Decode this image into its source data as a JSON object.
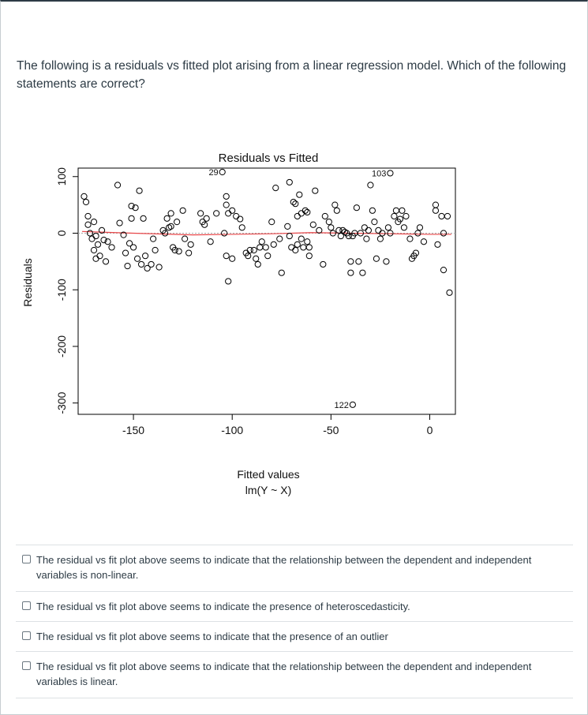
{
  "question": {
    "text": "The following is a residuals vs fitted plot arising from a linear regression model. Which of the following statements are correct?"
  },
  "chart_data": {
    "type": "scatter",
    "title": "Residuals vs Fitted",
    "xlabel": "Fitted values",
    "xlabel_sub": "lm(Y ~ X)",
    "ylabel": "Residuals",
    "xlim": [
      -178,
      13
    ],
    "ylim": [
      -320,
      115
    ],
    "x_ticks": [
      -150,
      -100,
      -50,
      0
    ],
    "x_tick_labels": [
      "-150",
      "-100",
      "-50",
      "0"
    ],
    "y_ticks": [
      100,
      0,
      -100,
      -200,
      -300
    ],
    "y_tick_labels": [
      "100",
      "0",
      "-100",
      "-200",
      "-300"
    ],
    "reference_line_y": 0,
    "smooth_line_color": "#e8474a",
    "reference_line_color": "#aaaaaa",
    "annotations": [
      {
        "label": "29",
        "x": -105,
        "y": 108
      },
      {
        "label": "103",
        "x": -20,
        "y": 106
      },
      {
        "label": "122",
        "x": -39,
        "y": -303
      }
    ],
    "points": [
      {
        "x": -175,
        "y": 65
      },
      {
        "x": -174,
        "y": 55
      },
      {
        "x": -173,
        "y": 30
      },
      {
        "x": -173,
        "y": 15
      },
      {
        "x": -172,
        "y": 0
      },
      {
        "x": -171,
        "y": -10
      },
      {
        "x": -170,
        "y": 20
      },
      {
        "x": -170,
        "y": -30
      },
      {
        "x": -169,
        "y": -5
      },
      {
        "x": -169,
        "y": -45
      },
      {
        "x": -168,
        "y": -20
      },
      {
        "x": -167,
        "y": -40
      },
      {
        "x": -166,
        "y": 5
      },
      {
        "x": -165,
        "y": -12
      },
      {
        "x": -164,
        "y": -50
      },
      {
        "x": -163,
        "y": -15
      },
      {
        "x": -161,
        "y": -25
      },
      {
        "x": -158,
        "y": 85
      },
      {
        "x": -157,
        "y": 18
      },
      {
        "x": -155,
        "y": -3
      },
      {
        "x": -154,
        "y": -35
      },
      {
        "x": -153,
        "y": -58
      },
      {
        "x": -152,
        "y": -18
      },
      {
        "x": -151,
        "y": 48
      },
      {
        "x": -151,
        "y": 26
      },
      {
        "x": -150,
        "y": -25
      },
      {
        "x": -149,
        "y": 45
      },
      {
        "x": -148,
        "y": -45
      },
      {
        "x": -147,
        "y": 75
      },
      {
        "x": -146,
        "y": -55
      },
      {
        "x": -145,
        "y": 26
      },
      {
        "x": -144,
        "y": -40
      },
      {
        "x": -143,
        "y": -62
      },
      {
        "x": -141,
        "y": -55
      },
      {
        "x": -140,
        "y": -10
      },
      {
        "x": -139,
        "y": -30
      },
      {
        "x": -137,
        "y": -60
      },
      {
        "x": -135,
        "y": 5
      },
      {
        "x": -134,
        "y": 0
      },
      {
        "x": -133,
        "y": 26
      },
      {
        "x": -132,
        "y": 10
      },
      {
        "x": -131,
        "y": 35
      },
      {
        "x": -131,
        "y": 12
      },
      {
        "x": -130,
        "y": -25
      },
      {
        "x": -129,
        "y": -30
      },
      {
        "x": -128,
        "y": 20
      },
      {
        "x": -127,
        "y": -32
      },
      {
        "x": -125,
        "y": 40
      },
      {
        "x": -124,
        "y": -10
      },
      {
        "x": -122,
        "y": -35
      },
      {
        "x": -121,
        "y": -20
      },
      {
        "x": -116,
        "y": 35
      },
      {
        "x": -115,
        "y": 20
      },
      {
        "x": -114,
        "y": 15
      },
      {
        "x": -113,
        "y": 26
      },
      {
        "x": -111,
        "y": -15
      },
      {
        "x": -108,
        "y": 35
      },
      {
        "x": -103,
        "y": 65
      },
      {
        "x": -103,
        "y": 50
      },
      {
        "x": -102,
        "y": 35
      },
      {
        "x": -104,
        "y": 0
      },
      {
        "x": -103,
        "y": -40
      },
      {
        "x": -100,
        "y": -45
      },
      {
        "x": -102,
        "y": -85
      },
      {
        "x": -100,
        "y": 40
      },
      {
        "x": -98,
        "y": 30
      },
      {
        "x": -96,
        "y": 25
      },
      {
        "x": -95,
        "y": 10
      },
      {
        "x": -93,
        "y": -35
      },
      {
        "x": -92,
        "y": -40
      },
      {
        "x": -91,
        "y": -30
      },
      {
        "x": -89,
        "y": -30
      },
      {
        "x": -88,
        "y": -45
      },
      {
        "x": -87,
        "y": -55
      },
      {
        "x": -86,
        "y": -25
      },
      {
        "x": -85,
        "y": -15
      },
      {
        "x": -83,
        "y": -25
      },
      {
        "x": -82,
        "y": -40
      },
      {
        "x": -80,
        "y": 20
      },
      {
        "x": -79,
        "y": -20
      },
      {
        "x": -78,
        "y": 80
      },
      {
        "x": -76,
        "y": -10
      },
      {
        "x": -75,
        "y": -70
      },
      {
        "x": -72,
        "y": 12
      },
      {
        "x": -71,
        "y": 90
      },
      {
        "x": -71,
        "y": -5
      },
      {
        "x": -70,
        "y": -25
      },
      {
        "x": -69,
        "y": 55
      },
      {
        "x": -68,
        "y": 52
      },
      {
        "x": -68,
        "y": -30
      },
      {
        "x": -67,
        "y": 30
      },
      {
        "x": -67,
        "y": -20
      },
      {
        "x": -66,
        "y": 68
      },
      {
        "x": -65,
        "y": 35
      },
      {
        "x": -65,
        "y": -10
      },
      {
        "x": -64,
        "y": -25
      },
      {
        "x": -63,
        "y": 40
      },
      {
        "x": -62,
        "y": 37
      },
      {
        "x": -62,
        "y": -15
      },
      {
        "x": -61,
        "y": -40
      },
      {
        "x": -61,
        "y": -25
      },
      {
        "x": -59,
        "y": 15
      },
      {
        "x": -58,
        "y": 75
      },
      {
        "x": -56,
        "y": 5
      },
      {
        "x": -54,
        "y": -55
      },
      {
        "x": -53,
        "y": 30
      },
      {
        "x": -51,
        "y": 20
      },
      {
        "x": -50,
        "y": 10
      },
      {
        "x": -49,
        "y": 0
      },
      {
        "x": -48,
        "y": 50
      },
      {
        "x": -47,
        "y": 40
      },
      {
        "x": -46,
        "y": 5
      },
      {
        "x": -45,
        "y": -5
      },
      {
        "x": -44,
        "y": 5
      },
      {
        "x": -43,
        "y": 2
      },
      {
        "x": -42,
        "y": 0
      },
      {
        "x": -41,
        "y": -5
      },
      {
        "x": -40,
        "y": -50
      },
      {
        "x": -40,
        "y": -70
      },
      {
        "x": -39,
        "y": -5
      },
      {
        "x": -38,
        "y": 0
      },
      {
        "x": -37,
        "y": 45
      },
      {
        "x": -36,
        "y": -50
      },
      {
        "x": -35,
        "y": 0
      },
      {
        "x": -34,
        "y": -70
      },
      {
        "x": -33,
        "y": 10
      },
      {
        "x": -32,
        "y": -10
      },
      {
        "x": -31,
        "y": 5
      },
      {
        "x": -30,
        "y": 85
      },
      {
        "x": -29,
        "y": 40
      },
      {
        "x": -28,
        "y": 20
      },
      {
        "x": -27,
        "y": -45
      },
      {
        "x": -26,
        "y": 5
      },
      {
        "x": -25,
        "y": -10
      },
      {
        "x": -24,
        "y": 0
      },
      {
        "x": -22,
        "y": -50
      },
      {
        "x": -21,
        "y": 10
      },
      {
        "x": -20,
        "y": 0
      },
      {
        "x": -18,
        "y": 30
      },
      {
        "x": -17,
        "y": 40
      },
      {
        "x": -16,
        "y": 20
      },
      {
        "x": -15,
        "y": 25
      },
      {
        "x": -14,
        "y": 40
      },
      {
        "x": -13,
        "y": 10
      },
      {
        "x": -12,
        "y": 30
      },
      {
        "x": -10,
        "y": -10
      },
      {
        "x": -9,
        "y": -45
      },
      {
        "x": -8,
        "y": -40
      },
      {
        "x": -7,
        "y": -35
      },
      {
        "x": -6,
        "y": 0
      },
      {
        "x": -5,
        "y": 10
      },
      {
        "x": -3,
        "y": -15
      },
      {
        "x": 3,
        "y": 50
      },
      {
        "x": 3,
        "y": 40
      },
      {
        "x": 4,
        "y": -20
      },
      {
        "x": 6,
        "y": 30
      },
      {
        "x": 7,
        "y": 0
      },
      {
        "x": 7,
        "y": -65
      },
      {
        "x": 9,
        "y": 30
      },
      {
        "x": 10,
        "y": -105
      }
    ],
    "smooth_line": [
      {
        "x": -176,
        "y": 3
      },
      {
        "x": -150,
        "y": 0
      },
      {
        "x": -120,
        "y": -3
      },
      {
        "x": -100,
        "y": -2
      },
      {
        "x": -80,
        "y": -1
      },
      {
        "x": -60,
        "y": 1
      },
      {
        "x": -40,
        "y": 0
      },
      {
        "x": -20,
        "y": -1
      },
      {
        "x": 0,
        "y": -2
      },
      {
        "x": 11,
        "y": -2
      }
    ]
  },
  "answers": [
    {
      "text": "The residual vs fit plot above seems to indicate that the relationship between the dependent and independent variables is non-linear."
    },
    {
      "text": "The residual vs fit plot above seems to indicate the presence of heteroscedasticity."
    },
    {
      "text": "The residual vs fit plot above seems to indicate that the presence of an outlier"
    },
    {
      "text": "The residual vs fit plot above seems to indicate that the relationship between the dependent and independent variables is linear."
    }
  ]
}
